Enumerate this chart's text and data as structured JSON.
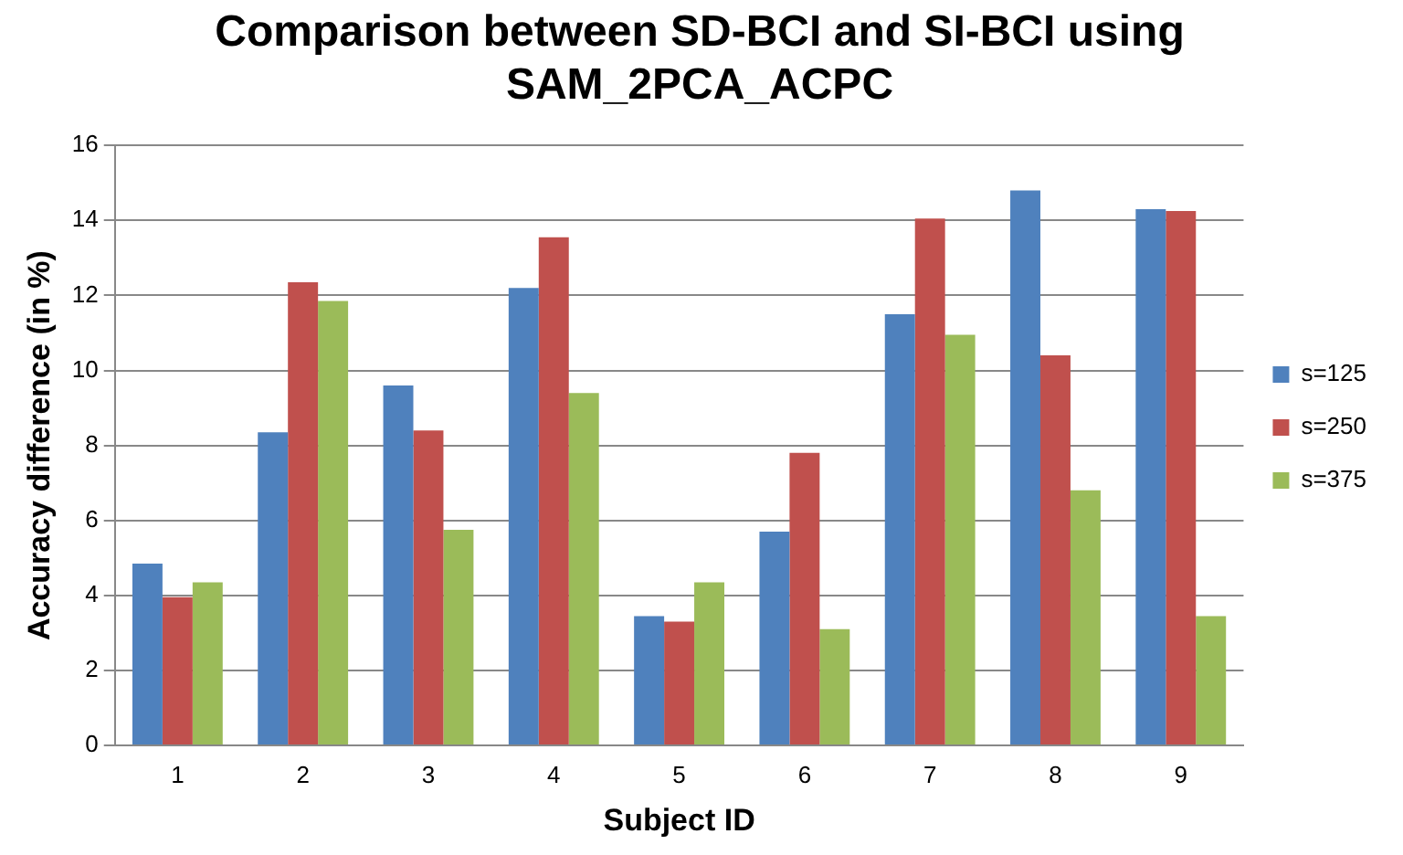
{
  "chart_data": {
    "type": "bar",
    "title": "Comparison between SD-BCI and SI-BCI using SAM_2PCA_ACPC",
    "xlabel": "Subject ID",
    "ylabel": "Accuracy difference (in %)",
    "categories": [
      "1",
      "2",
      "3",
      "4",
      "5",
      "6",
      "7",
      "8",
      "9"
    ],
    "series": [
      {
        "name": "s=125",
        "color": "#4f81bd",
        "values": [
          4.85,
          8.35,
          9.6,
          12.2,
          3.45,
          5.7,
          11.5,
          14.8,
          14.3
        ]
      },
      {
        "name": "s=250",
        "color": "#c0504d",
        "values": [
          3.95,
          12.35,
          8.4,
          13.55,
          3.3,
          7.8,
          14.05,
          10.4,
          14.25
        ]
      },
      {
        "name": "s=375",
        "color": "#9bbb59",
        "values": [
          4.35,
          11.85,
          5.75,
          9.4,
          4.35,
          3.1,
          10.95,
          6.8,
          3.45
        ]
      }
    ],
    "ylim": [
      0,
      16
    ],
    "yticks": [
      0,
      2,
      4,
      6,
      8,
      10,
      12,
      14,
      16
    ],
    "grid": "y",
    "legend": "right"
  }
}
